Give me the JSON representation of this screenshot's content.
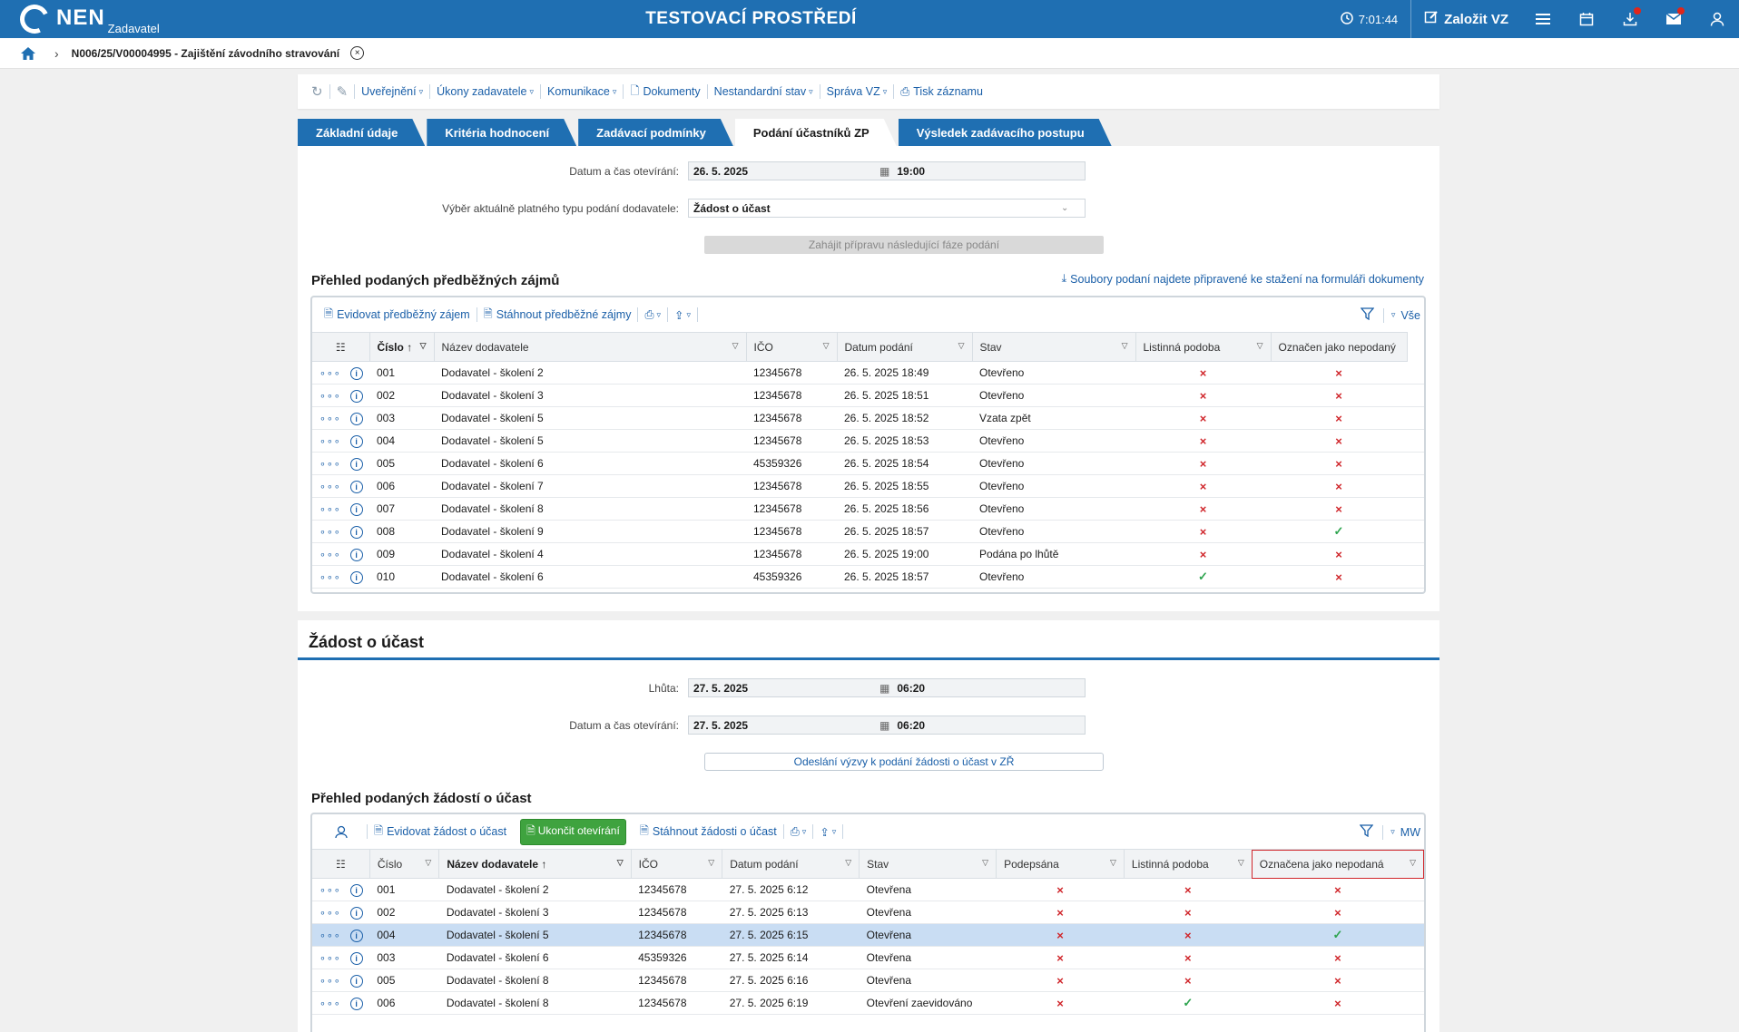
{
  "header": {
    "logo": "NEN",
    "logo_sub": "Zadavatel",
    "env_title": "TESTOVACÍ PROSTŘEDÍ",
    "time": "7:01:44",
    "create_label": "Založit VZ"
  },
  "breadcrumb": {
    "text": "N006/25/V00004995 - Zajištění závodního stravování"
  },
  "toolbar": [
    {
      "label": "Uveřejnění",
      "caret": true
    },
    {
      "label": "Úkony zadavatele",
      "caret": true
    },
    {
      "label": "Komunikace",
      "caret": true
    },
    {
      "label": "Dokumenty",
      "caret": false
    },
    {
      "label": "Nestandardní stav",
      "caret": true
    },
    {
      "label": "Správa VZ",
      "caret": true
    },
    {
      "label": "Tisk záznamu",
      "caret": false
    }
  ],
  "tabs": [
    "Základní údaje",
    "Kritéria hodnocení",
    "Zadávací podmínky",
    "Podání účastníků ZP",
    "Výsledek zadávacího postupu"
  ],
  "top_form": {
    "open_label": "Datum a čas otevírání:",
    "open_date": "26. 5. 2025",
    "open_time": "19:00",
    "type_label": "Výběr aktuálně platného typu podání dodavatele:",
    "type_value": "Žádost o účast",
    "next_phase": "Zahájit přípravu následující fáze podání"
  },
  "grid1": {
    "title": "Přehled podaných předběžných zájmů",
    "files_link": "Soubory podaní najdete připravené ke stažení na formuláři dokumenty",
    "tools": [
      "Evidovat předběžný zájem",
      "Stáhnout předběžné zájmy"
    ],
    "filter_label": "Vše",
    "columns": [
      "Číslo",
      "Název dodavatele",
      "IČO",
      "Datum podání",
      "Stav",
      "Listinná podoba",
      "Označen jako nepodaný"
    ],
    "rows": [
      [
        "001",
        "Dodavatel - školení 2",
        "12345678",
        "26. 5. 2025 18:49",
        "Otevřeno",
        "x",
        "x"
      ],
      [
        "002",
        "Dodavatel - školení 3",
        "12345678",
        "26. 5. 2025 18:51",
        "Otevřeno",
        "x",
        "x"
      ],
      [
        "003",
        "Dodavatel - školení 5",
        "12345678",
        "26. 5. 2025 18:52",
        "Vzata zpět",
        "x",
        "x"
      ],
      [
        "004",
        "Dodavatel - školení 5",
        "12345678",
        "26. 5. 2025 18:53",
        "Otevřeno",
        "x",
        "x"
      ],
      [
        "005",
        "Dodavatel - školení 6",
        "45359326",
        "26. 5. 2025 18:54",
        "Otevřeno",
        "x",
        "x"
      ],
      [
        "006",
        "Dodavatel - školení 7",
        "12345678",
        "26. 5. 2025 18:55",
        "Otevřeno",
        "x",
        "x"
      ],
      [
        "007",
        "Dodavatel - školení 8",
        "12345678",
        "26. 5. 2025 18:56",
        "Otevřeno",
        "x",
        "x"
      ],
      [
        "008",
        "Dodavatel - školení 9",
        "12345678",
        "26. 5. 2025 18:57",
        "Otevřeno",
        "x",
        "ok"
      ],
      [
        "009",
        "Dodavatel - školení 4",
        "12345678",
        "26. 5. 2025 19:00",
        "Podána po lhůtě",
        "x",
        "x"
      ],
      [
        "010",
        "Dodavatel - školení 6",
        "45359326",
        "26. 5. 2025 18:57",
        "Otevřeno",
        "ok",
        "x"
      ]
    ]
  },
  "section2": {
    "title": "Žádost o účast",
    "deadline_label": "Lhůta:",
    "deadline_date": "27. 5. 2025",
    "deadline_time": "06:20",
    "open_label": "Datum a čas otevírání:",
    "open_date": "27. 5. 2025",
    "open_time": "06:20",
    "send_button": "Odeslání výzvy k podání žádosti o účast v ZŘ"
  },
  "grid2": {
    "title": "Přehled podaných žádostí o účast",
    "tools": [
      "Evidovat žádost o účast",
      "Ukončit otevírání",
      "Stáhnout žádosti o účast"
    ],
    "filter_label": "MW",
    "columns": [
      "Číslo",
      "Název dodavatele",
      "IČO",
      "Datum podání",
      "Stav",
      "Podepsána",
      "Listinná podoba",
      "Označena jako nepodaná"
    ],
    "rows": [
      [
        "001",
        "Dodavatel - školení 2",
        "12345678",
        "27. 5. 2025 6:12",
        "Otevřena",
        "x",
        "x",
        "x"
      ],
      [
        "002",
        "Dodavatel - školení 3",
        "12345678",
        "27. 5. 2025 6:13",
        "Otevřena",
        "x",
        "x",
        "x"
      ],
      [
        "004",
        "Dodavatel - školení 5",
        "12345678",
        "27. 5. 2025 6:15",
        "Otevřena",
        "x",
        "x",
        "ok"
      ],
      [
        "003",
        "Dodavatel - školení 6",
        "45359326",
        "27. 5. 2025 6:14",
        "Otevřena",
        "x",
        "x",
        "x"
      ],
      [
        "005",
        "Dodavatel - školení 8",
        "12345678",
        "27. 5. 2025 6:16",
        "Otevřena",
        "x",
        "x",
        "x"
      ],
      [
        "006",
        "Dodavatel - školení 8",
        "12345678",
        "27. 5. 2025 6:19",
        "Otevření zaevidováno",
        "x",
        "ok",
        "x"
      ]
    ],
    "selected_row": 2
  },
  "colors": {
    "primary": "#1f6fb2",
    "error": "#d0262b",
    "success": "#2ea44f",
    "selected": "#c9ddf3",
    "green_button": "#3fa33f"
  }
}
